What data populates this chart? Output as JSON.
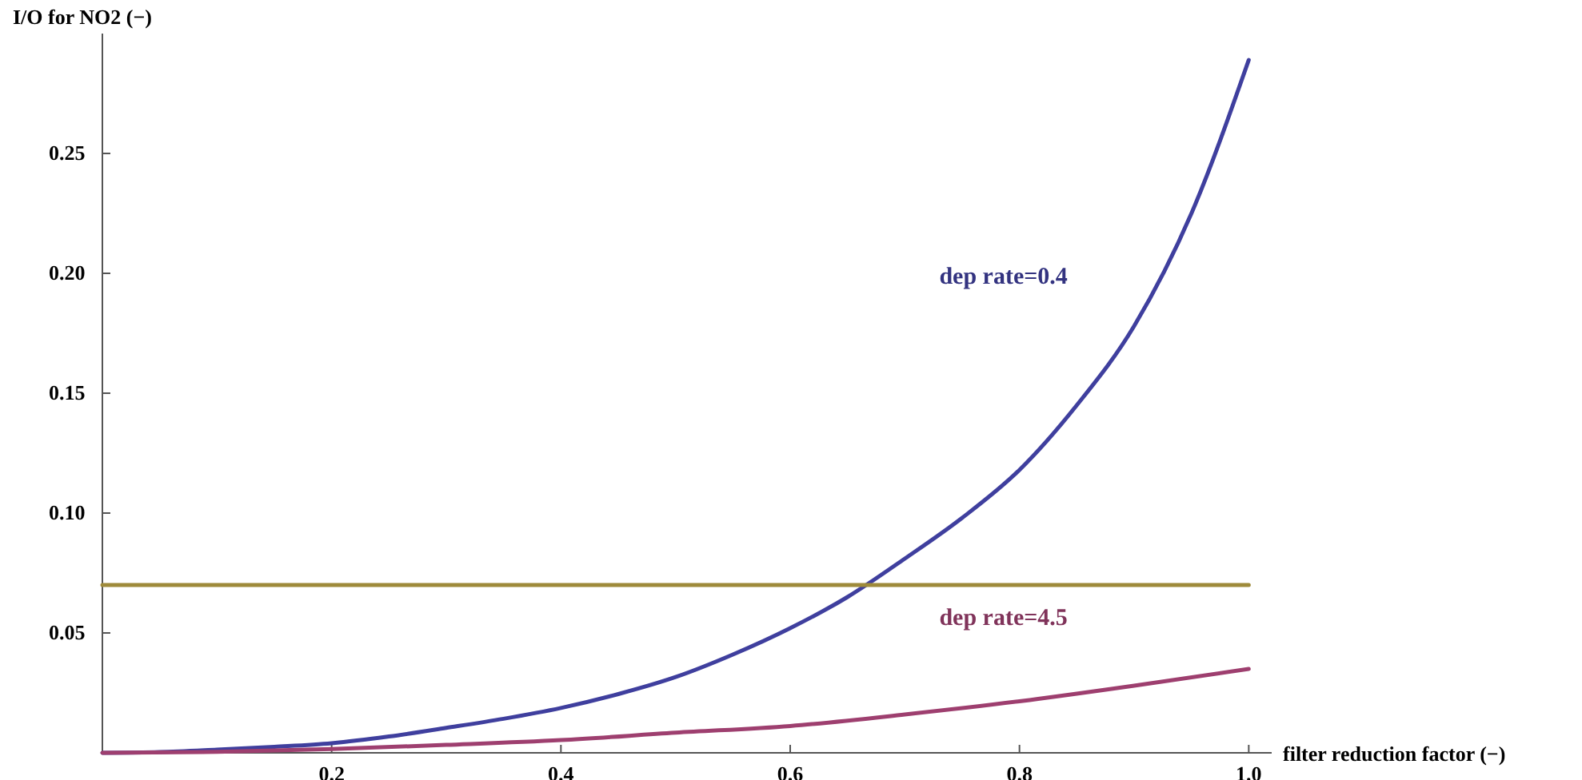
{
  "chart_data": {
    "type": "line",
    "xlabel": "filter reduction factor (−)",
    "ylabel": "I/O for NO2 (−)",
    "xlim": [
      0,
      1.02
    ],
    "ylim": [
      0,
      0.3
    ],
    "xticks": [
      {
        "value": 0.2,
        "label": "0.2"
      },
      {
        "value": 0.4,
        "label": "0.4"
      },
      {
        "value": 0.6,
        "label": "0.6"
      },
      {
        "value": 0.8,
        "label": "0.8"
      },
      {
        "value": 1.0,
        "label": "1.0"
      }
    ],
    "yticks": [
      {
        "value": 0.05,
        "label": "0.05"
      },
      {
        "value": 0.1,
        "label": "0.10"
      },
      {
        "value": 0.15,
        "label": "0.15"
      },
      {
        "value": 0.2,
        "label": "0.20"
      },
      {
        "value": 0.25,
        "label": "0.25"
      }
    ],
    "grid": false,
    "legend": false,
    "marker": "none",
    "line_style": "solid",
    "series": [
      {
        "name": "dep rate=0.4",
        "color": "#3f3f9e",
        "x": [
          0,
          0.05,
          0.1,
          0.15,
          0.2,
          0.25,
          0.3,
          0.35,
          0.4,
          0.45,
          0.5,
          0.55,
          0.6,
          0.65,
          0.7,
          0.75,
          0.8,
          0.85,
          0.9,
          0.95,
          1.0
        ],
        "values": [
          0,
          0.0003,
          0.0013,
          0.0025,
          0.004,
          0.0068,
          0.0104,
          0.0142,
          0.0187,
          0.0245,
          0.0316,
          0.041,
          0.052,
          0.065,
          0.081,
          0.098,
          0.118,
          0.145,
          0.178,
          0.225,
          0.289
        ]
      },
      {
        "name": "dep rate=4.5",
        "color": "#9e3f6f",
        "x": [
          0,
          0.1,
          0.2,
          0.3,
          0.4,
          0.5,
          0.6,
          0.7,
          0.8,
          0.9,
          1.0
        ],
        "values": [
          0,
          0.0004,
          0.0016,
          0.0033,
          0.0053,
          0.0084,
          0.0112,
          0.016,
          0.0215,
          0.028,
          0.035
        ]
      },
      {
        "color": "#9e8a3a",
        "x": [
          0,
          1.0
        ],
        "values": [
          0.07,
          0.07
        ]
      }
    ]
  }
}
